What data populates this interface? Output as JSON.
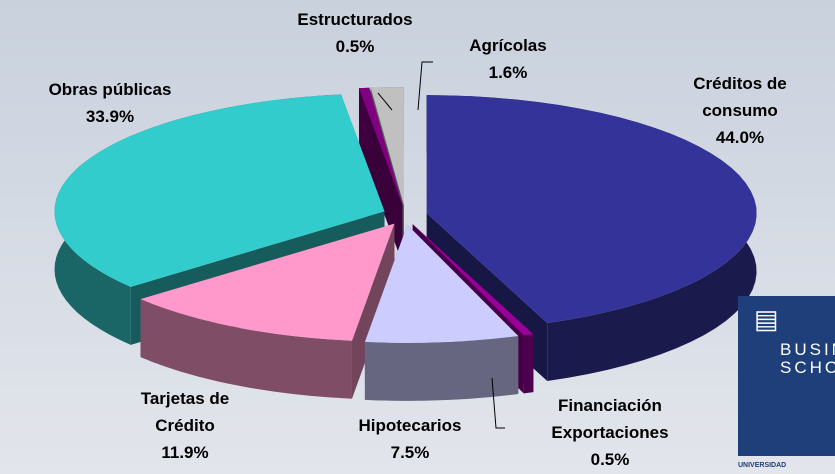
{
  "chart_data": {
    "type": "pie3d",
    "categories": [
      "Créditos de consumo",
      "Financiación Exportaciones",
      "Hipotecarios",
      "Tarjetas de Crédito",
      "Obras públicas",
      "Estructurados",
      "Agrícolas"
    ],
    "values": [
      44.0,
      0.5,
      7.5,
      11.9,
      33.9,
      0.5,
      1.6
    ],
    "value_labels": [
      "44.0%",
      "0.5%",
      "7.5%",
      "11.9%",
      "33.9%",
      "0.5%",
      "1.6%"
    ],
    "colors": [
      "#333399",
      "#990099",
      "#ccccff",
      "#ff99cc",
      "#33cccc",
      "#800080",
      "#c0c0c0"
    ]
  },
  "logo": {
    "lines": [
      "BUSIN",
      "SCHO"
    ],
    "footer": "UNIVERSIDAD"
  }
}
